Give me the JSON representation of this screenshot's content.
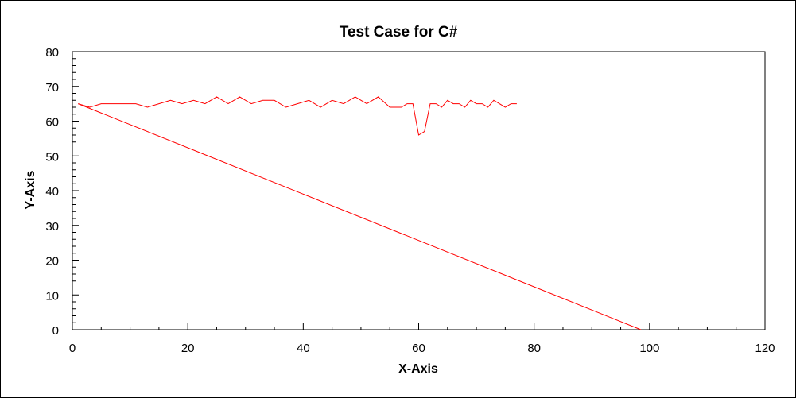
{
  "chart_data": {
    "type": "line",
    "title": "Test Case for C#",
    "xlabel": "X-Axis",
    "ylabel": "Y-Axis",
    "xlim": [
      0,
      120
    ],
    "ylim": [
      0,
      80
    ],
    "x_ticks": [
      0,
      20,
      40,
      60,
      80,
      100,
      120
    ],
    "y_ticks": [
      0,
      10,
      20,
      30,
      40,
      50,
      60,
      70,
      80
    ],
    "grid": false,
    "legend": "none",
    "series": [
      {
        "color": "#ff0000",
        "x": [
          1,
          3,
          5,
          7,
          9,
          11,
          13,
          15,
          17,
          19,
          21,
          23,
          25,
          27,
          29,
          31,
          33,
          35,
          37,
          39,
          41,
          43,
          45,
          47,
          49,
          51,
          53,
          55,
          57,
          58,
          59,
          60,
          61,
          62,
          63,
          64,
          65,
          66,
          67,
          68,
          69,
          70,
          71,
          72,
          73,
          74,
          75,
          76,
          77
        ],
        "y": [
          65,
          64,
          65,
          65,
          65,
          65,
          64,
          65,
          66,
          65,
          66,
          65,
          67,
          65,
          67,
          65,
          66,
          66,
          64,
          65,
          66,
          64,
          66,
          65,
          67,
          65,
          67,
          64,
          64,
          65,
          65,
          56,
          57,
          65,
          65,
          64,
          66,
          65,
          65,
          64,
          66,
          65,
          65,
          64,
          66,
          65,
          64,
          65,
          65
        ]
      },
      {
        "color": "#ff0000",
        "x": [
          1,
          98.5
        ],
        "y": [
          65,
          0
        ]
      }
    ]
  }
}
